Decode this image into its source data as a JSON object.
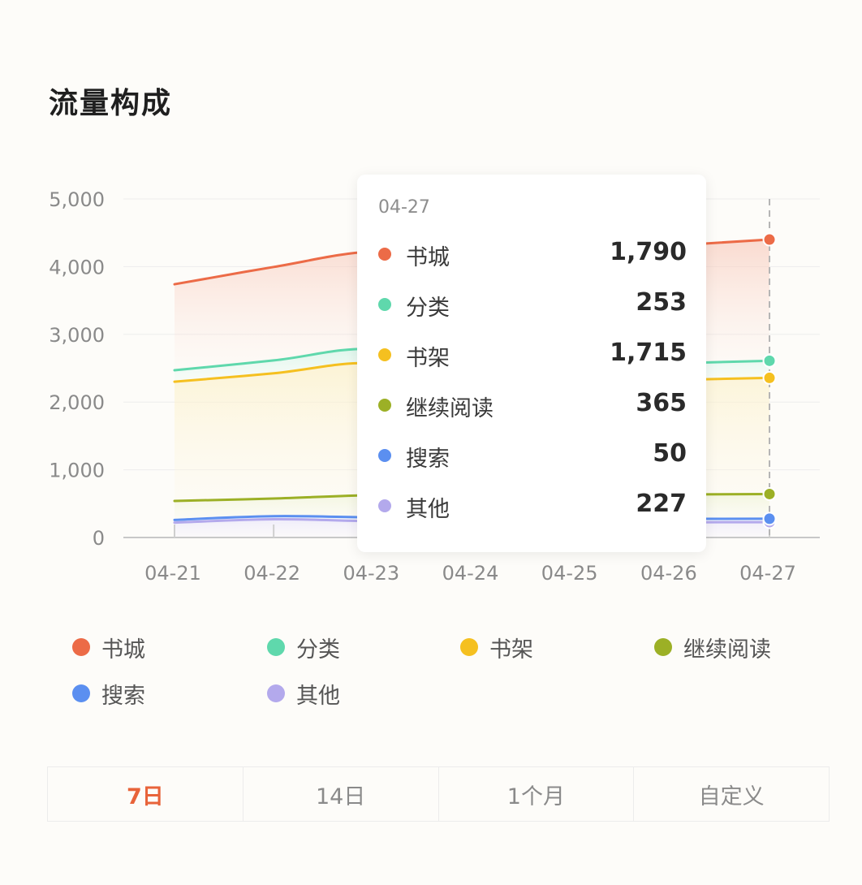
{
  "page": {
    "title": "流量构成"
  },
  "chart_data": {
    "type": "area",
    "title": "流量构成",
    "categories": [
      "04-21",
      "04-22",
      "04-23",
      "04-24",
      "04-25",
      "04-26",
      "04-27"
    ],
    "yticks": [
      "0",
      "1,000",
      "2,000",
      "3,000",
      "4,000",
      "5,000"
    ],
    "ylim": [
      0,
      5000
    ],
    "grid": true,
    "stacked": true,
    "series": [
      {
        "name": "其他",
        "color": "#b3a9ec",
        "values": [
          220,
          270,
          240,
          230,
          225,
          225,
          227
        ]
      },
      {
        "name": "搜索",
        "color": "#5b8ff0",
        "values": [
          40,
          45,
          55,
          50,
          50,
          50,
          50
        ]
      },
      {
        "name": "继续阅读",
        "color": "#9cb026",
        "values": [
          280,
          260,
          330,
          340,
          350,
          360,
          365
        ]
      },
      {
        "name": "书架",
        "color": "#f5c020",
        "values": [
          1760,
          1850,
          1950,
          1700,
          1660,
          1690,
          1715
        ]
      },
      {
        "name": "分类",
        "color": "#5fd8ac",
        "values": [
          170,
          190,
          210,
          200,
          240,
          245,
          253
        ]
      },
      {
        "name": "书城",
        "color": "#ec6b47",
        "values": [
          1270,
          1380,
          1440,
          1640,
          1700,
          1740,
          1790
        ]
      }
    ],
    "legend_order": [
      "书城",
      "分类",
      "书架",
      "继续阅读",
      "搜索",
      "其他"
    ],
    "legend_position": "bottom"
  },
  "tooltip": {
    "date": "04-27",
    "rows": [
      {
        "label": "书城",
        "value": "1,790",
        "color": "#ec6b47"
      },
      {
        "label": "分类",
        "value": "253",
        "color": "#5fd8ac"
      },
      {
        "label": "书架",
        "value": "1,715",
        "color": "#f5c020"
      },
      {
        "label": "继续阅读",
        "value": "365",
        "color": "#9cb026"
      },
      {
        "label": "搜索",
        "value": "50",
        "color": "#5b8ff0"
      },
      {
        "label": "其他",
        "value": "227",
        "color": "#b3a9ec"
      }
    ]
  },
  "range_tabs": [
    {
      "label": "7日",
      "active": true
    },
    {
      "label": "14日",
      "active": false
    },
    {
      "label": "1个月",
      "active": false
    },
    {
      "label": "自定义",
      "active": false
    }
  ]
}
